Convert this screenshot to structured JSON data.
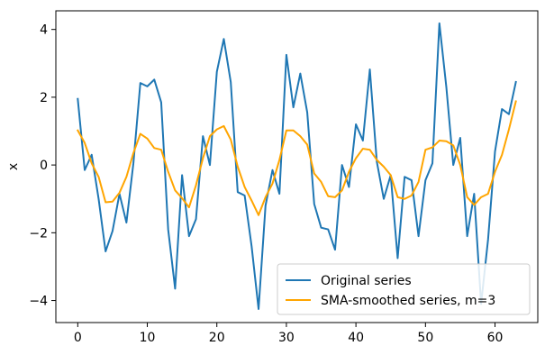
{
  "chart_data": {
    "type": "line",
    "xlabel": "",
    "ylabel": "x",
    "xlim": [
      -3.15,
      66.15
    ],
    "ylim": [
      -4.65,
      4.55
    ],
    "x_ticks": [
      0,
      10,
      20,
      30,
      40,
      50,
      60
    ],
    "y_ticks": [
      -4,
      -2,
      0,
      2,
      4
    ],
    "x_tick_labels": [
      "0",
      "10",
      "20",
      "30",
      "40",
      "50",
      "60"
    ],
    "y_tick_labels": [
      "−4",
      "−2",
      "0",
      "2",
      "4"
    ],
    "grid": false,
    "legend_position": "lower-right",
    "x": [
      0,
      1,
      2,
      3,
      4,
      5,
      6,
      7,
      8,
      9,
      10,
      11,
      12,
      13,
      14,
      15,
      16,
      17,
      18,
      19,
      20,
      21,
      22,
      23,
      24,
      25,
      26,
      27,
      28,
      29,
      30,
      31,
      32,
      33,
      34,
      35,
      36,
      37,
      38,
      39,
      40,
      41,
      42,
      43,
      44,
      45,
      46,
      47,
      48,
      49,
      50,
      51,
      52,
      53,
      54,
      55,
      56,
      57,
      58,
      59,
      60,
      61,
      62,
      63
    ],
    "series": [
      {
        "name": "Original series",
        "color": "#1f77b4",
        "values": [
          1.95,
          -0.15,
          0.3,
          -1.0,
          -2.55,
          -1.95,
          -0.85,
          -1.7,
          0.05,
          2.42,
          2.32,
          2.52,
          1.85,
          -1.9,
          -3.65,
          -0.3,
          -2.1,
          -1.6,
          0.85,
          0.0,
          2.75,
          3.72,
          2.45,
          -0.8,
          -0.9,
          -2.4,
          -4.25,
          -1.2,
          -0.15,
          -0.85,
          3.25,
          1.7,
          2.7,
          1.55,
          -1.15,
          -1.85,
          -1.9,
          -2.5,
          0.0,
          -0.65,
          1.2,
          0.72,
          2.82,
          0.1,
          -1.0,
          -0.3,
          -2.75,
          -0.35,
          -0.45,
          -2.1,
          -0.45,
          0.05,
          4.18,
          2.3,
          0.0,
          0.8,
          -2.1,
          -0.85,
          -4.1,
          -2.2,
          0.4,
          1.65,
          1.5,
          2.45
        ]
      },
      {
        "name": "SMA-smoothed series, m=3",
        "color": "#ffa500",
        "values": [
          1.02,
          0.65,
          0.05,
          -0.35,
          -1.1,
          -1.08,
          -0.82,
          -0.35,
          0.35,
          0.92,
          0.78,
          0.5,
          0.45,
          -0.2,
          -0.75,
          -0.98,
          -1.25,
          -0.6,
          0.2,
          0.85,
          1.05,
          1.15,
          0.75,
          -0.05,
          -0.65,
          -1.05,
          -1.48,
          -0.95,
          -0.55,
          0.15,
          1.02,
          1.02,
          0.85,
          0.6,
          -0.25,
          -0.5,
          -0.92,
          -0.95,
          -0.75,
          -0.2,
          0.2,
          0.48,
          0.45,
          0.15,
          -0.05,
          -0.3,
          -0.95,
          -1.0,
          -0.9,
          -0.5,
          0.45,
          0.52,
          0.72,
          0.7,
          0.58,
          0.0,
          -0.95,
          -1.18,
          -0.95,
          -0.85,
          -0.2,
          0.3,
          1.05,
          1.88
        ]
      }
    ]
  }
}
